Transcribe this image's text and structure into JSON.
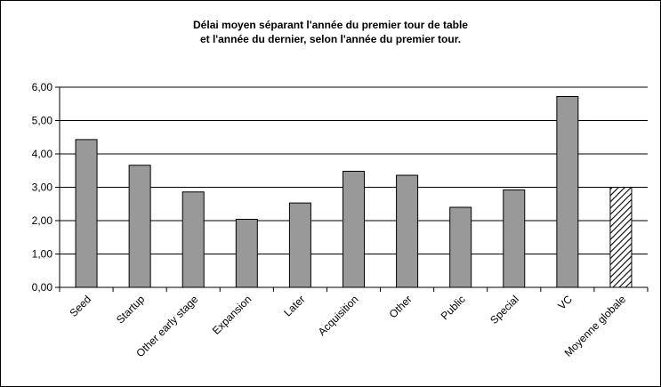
{
  "chart_data": {
    "type": "bar",
    "title_lines": [
      "Délai moyen séparant l'année du premier tour de table",
      "et l'année du dernier, selon l'année du premier tour."
    ],
    "categories": [
      "Seed",
      "Startup",
      "Other early stage",
      "Expansion",
      "Later",
      "Acquisition",
      "Other",
      "Public",
      "Special",
      "VC",
      "Moyenne globale"
    ],
    "values": [
      4.43,
      3.66,
      2.86,
      2.04,
      2.53,
      3.48,
      3.36,
      2.4,
      2.92,
      5.72,
      3.0
    ],
    "hatched_category": "Moyenne globale",
    "ylim": [
      0,
      6
    ],
    "yticks": [
      0,
      1,
      2,
      3,
      4,
      5,
      6
    ],
    "ytick_labels": [
      "0,00",
      "1,00",
      "2,00",
      "3,00",
      "4,00",
      "5,00",
      "6,00"
    ],
    "xlabel": "",
    "ylabel": "",
    "grid": true,
    "legend": false,
    "colors": {
      "bar_fill": "#999999",
      "bar_stroke": "#000000",
      "hatch": "#000000",
      "grid": "#000000"
    }
  }
}
